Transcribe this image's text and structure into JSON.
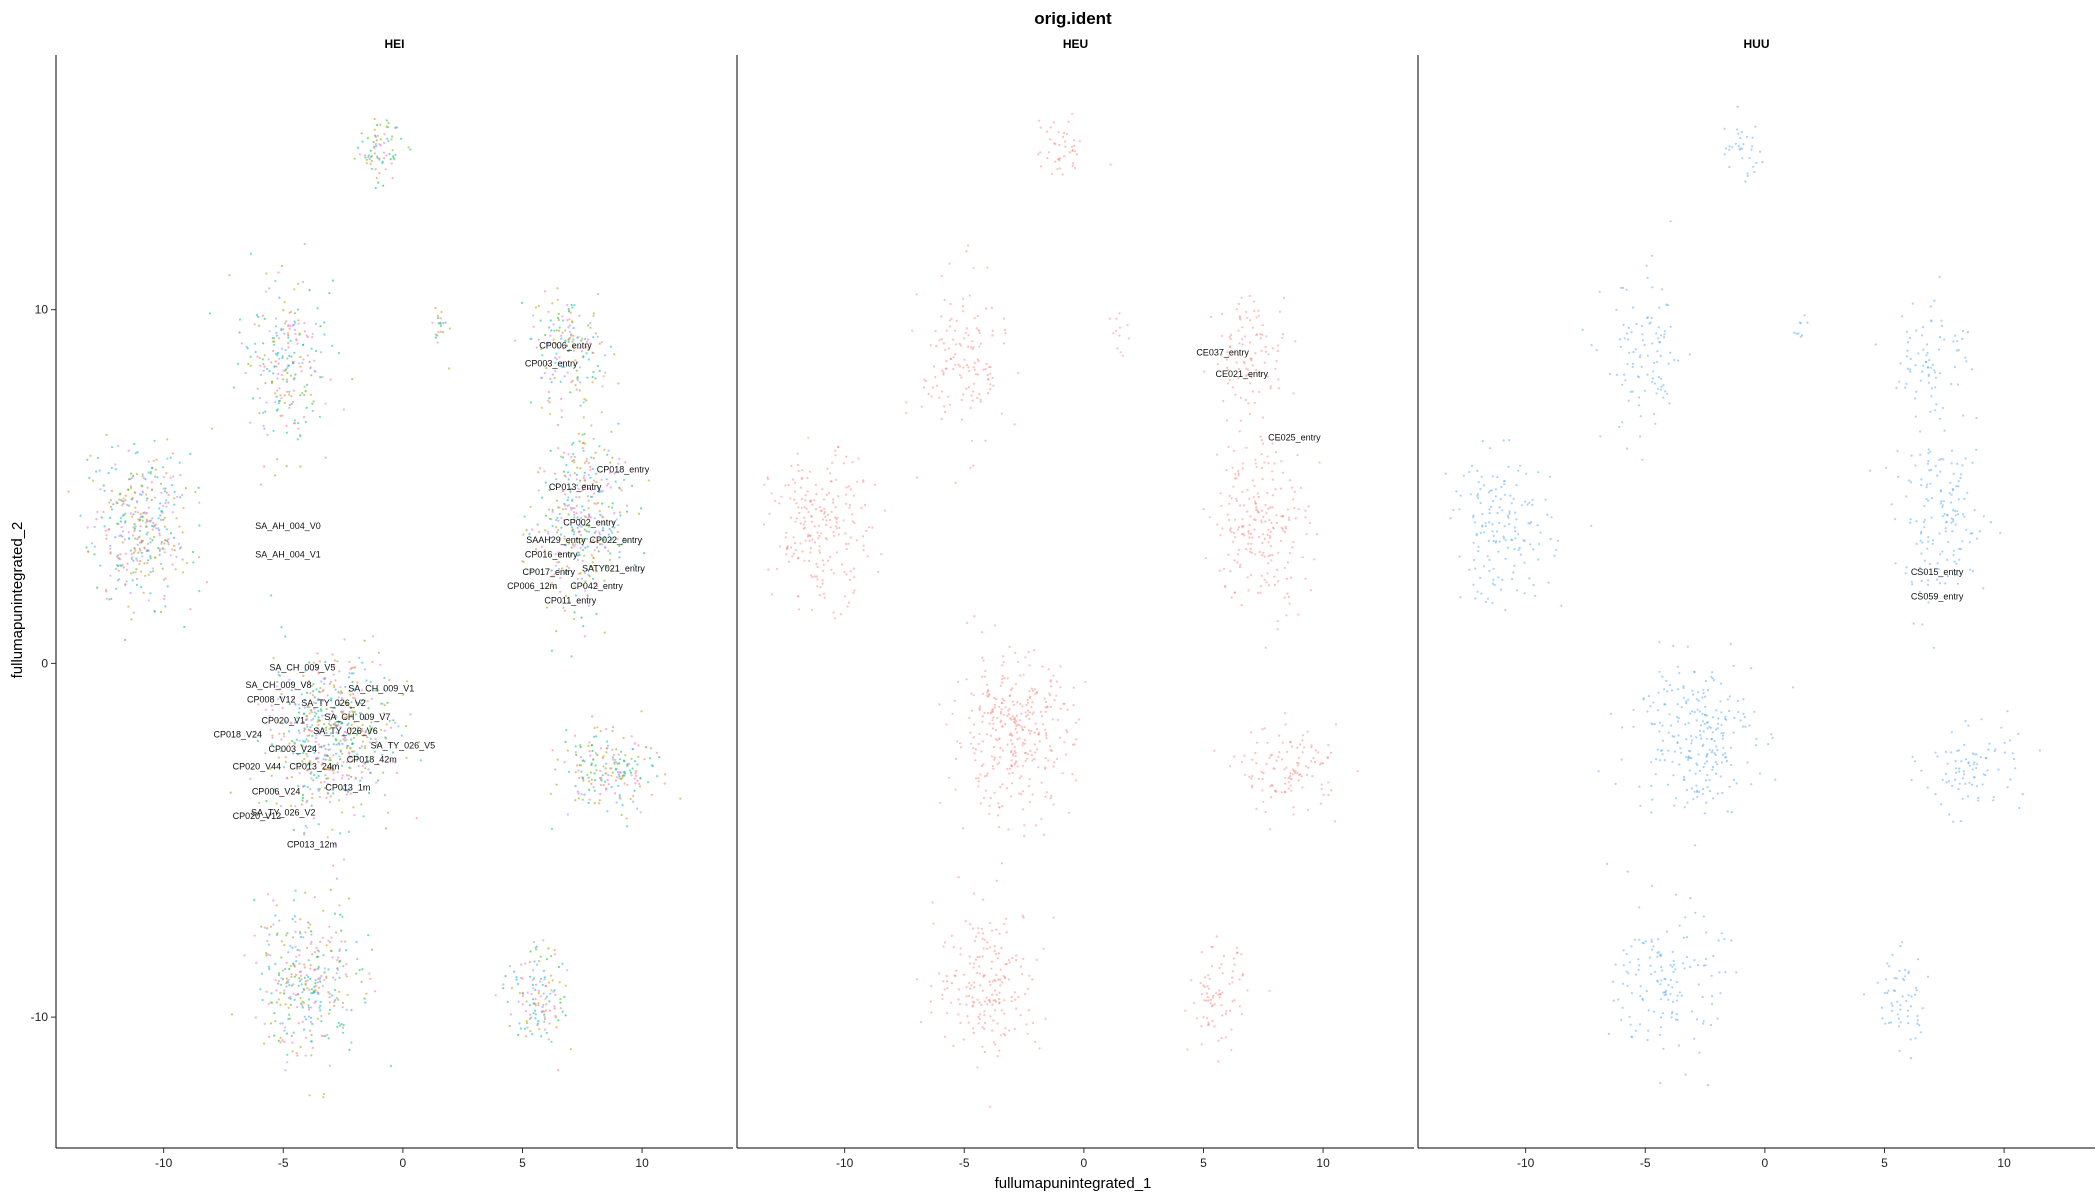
{
  "chart_data": {
    "type": "scatter",
    "title": "orig.ident",
    "xlabel": "fullumapunintegrated_1",
    "ylabel": "fullumapunintegrated_2",
    "xlim": [
      -14.5,
      13.8
    ],
    "ylim": [
      -13.7,
      17.2
    ],
    "x_ticks": [
      -10,
      -5,
      0,
      5,
      10
    ],
    "x_tick_labels": [
      "-10",
      "-5",
      "0",
      "5",
      "10"
    ],
    "y_ticks": [
      -10,
      0,
      10
    ],
    "y_tick_labels": [
      "-10",
      "0",
      "10"
    ],
    "grid": false,
    "legend": "none",
    "palette": [
      "#F8766D",
      "#E58700",
      "#C99800",
      "#A3A500",
      "#6BB100",
      "#00BA38",
      "#00BF7D",
      "#00C0AF",
      "#00BCD8",
      "#00B0F6",
      "#619CFF",
      "#B983FF",
      "#E76BF3",
      "#FD61D1",
      "#FF67A4"
    ],
    "cluster_shapes": [
      {
        "cx": -1,
        "cy": 14.5,
        "sx": 0.9,
        "sy": 0.8,
        "w": 0.022
      },
      {
        "cx": -5,
        "cy": 8.5,
        "sx": 1.6,
        "sy": 2.2,
        "w": 0.07
      },
      {
        "cx": -11,
        "cy": 3.8,
        "sx": 1.9,
        "sy": 1.9,
        "w": 0.11
      },
      {
        "cx": 7,
        "cy": 8.8,
        "sx": 1.4,
        "sy": 1.5,
        "w": 0.05
      },
      {
        "cx": 7.4,
        "cy": 4,
        "sx": 1.8,
        "sy": 2.2,
        "w": 0.11
      },
      {
        "cx": -3,
        "cy": -2,
        "sx": 2.3,
        "sy": 2,
        "w": 0.17
      },
      {
        "cx": -4,
        "cy": -9,
        "sx": 2,
        "sy": 1.9,
        "w": 0.1
      },
      {
        "cx": 8.6,
        "cy": -3,
        "sx": 1.9,
        "sy": 1.1,
        "w": 0.06
      },
      {
        "cx": 5.6,
        "cy": -9.5,
        "sx": 1.1,
        "sy": 1.3,
        "w": 0.04
      },
      {
        "cx": 1.5,
        "cy": 9.5,
        "sx": 0.3,
        "sy": 0.7,
        "w": 0.006
      }
    ],
    "series": [
      {
        "name": "HEI",
        "color": "#F8766D",
        "labels": [
          {
            "text": "CP006_entry",
            "x": 6.8,
            "y": 8.9
          },
          {
            "text": "CP003_entry",
            "x": 6.2,
            "y": 8.4
          },
          {
            "text": "CP018_entry",
            "x": 9.2,
            "y": 5.4
          },
          {
            "text": "CP013_entry",
            "x": 7.2,
            "y": 4.9
          },
          {
            "text": "CP002_entry",
            "x": 7.8,
            "y": 3.9
          },
          {
            "text": "SAAH29_entry",
            "x": 6.4,
            "y": 3.4
          },
          {
            "text": "CP022_entry",
            "x": 8.9,
            "y": 3.4
          },
          {
            "text": "CP016_entry",
            "x": 6.2,
            "y": 3.0
          },
          {
            "text": "CP017_entry",
            "x": 6.1,
            "y": 2.5
          },
          {
            "text": "SATY021_entry",
            "x": 8.8,
            "y": 2.6
          },
          {
            "text": "CP006_12m",
            "x": 5.4,
            "y": 2.1
          },
          {
            "text": "CP042_entry",
            "x": 8.1,
            "y": 2.1
          },
          {
            "text": "CP011_entry",
            "x": 7.0,
            "y": 1.7
          },
          {
            "text": "SA_AH_004_V0",
            "x": -4.8,
            "y": 3.8
          },
          {
            "text": "SA_AH_004_V1",
            "x": -4.8,
            "y": 3.0
          },
          {
            "text": "SA_CH_009_V5",
            "x": -4.2,
            "y": -0.2
          },
          {
            "text": "SA_CH_009_V8",
            "x": -5.2,
            "y": -0.7
          },
          {
            "text": "SA_CH_009_V1",
            "x": -0.9,
            "y": -0.8
          },
          {
            "text": "CP008_V12",
            "x": -5.5,
            "y": -1.1
          },
          {
            "text": "SA_TY_026_V2",
            "x": -2.9,
            "y": -1.2
          },
          {
            "text": "SA_CH_009_V7",
            "x": -1.9,
            "y": -1.6
          },
          {
            "text": "CP020_V1",
            "x": -5.0,
            "y": -1.7
          },
          {
            "text": "CP018_V24",
            "x": -6.9,
            "y": -2.1
          },
          {
            "text": "SA_TY_026_V6",
            "x": -2.4,
            "y": -2.0
          },
          {
            "text": "SA_TY_026_V5",
            "x": 0.0,
            "y": -2.4
          },
          {
            "text": "CP003_V24",
            "x": -4.6,
            "y": -2.5
          },
          {
            "text": "CP018_42m",
            "x": -1.3,
            "y": -2.8
          },
          {
            "text": "CP020_V44",
            "x": -6.1,
            "y": -3.0
          },
          {
            "text": "CP013_24m",
            "x": -3.7,
            "y": -3.0
          },
          {
            "text": "CP013_1m",
            "x": -2.3,
            "y": -3.6
          },
          {
            "text": "CP006_V24",
            "x": -5.3,
            "y": -3.7
          },
          {
            "text": "SA_TY_026_V2",
            "x": -5.0,
            "y": -4.3
          },
          {
            "text": "CP020_V12",
            "x": -6.1,
            "y": -4.4
          },
          {
            "text": "CP013_12m",
            "x": -3.8,
            "y": -5.2
          }
        ]
      },
      {
        "name": "HEU",
        "color": "#F8766D",
        "labels": [
          {
            "text": "CE037_entry",
            "x": 5.8,
            "y": 8.7
          },
          {
            "text": "CE021_entry",
            "x": 6.6,
            "y": 8.1
          },
          {
            "text": "CE025_entry",
            "x": 8.8,
            "y": 6.3
          }
        ]
      },
      {
        "name": "HUU",
        "color": "#3D9EF5",
        "labels": [
          {
            "text": "CS015_entry",
            "x": 7.2,
            "y": 2.5
          },
          {
            "text": "CS059_entry",
            "x": 7.2,
            "y": 1.8
          }
        ]
      }
    ]
  }
}
